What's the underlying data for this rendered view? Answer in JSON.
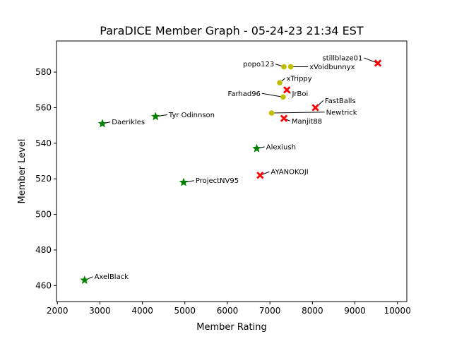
{
  "chart_data": {
    "type": "scatter",
    "title": "ParaDICE Member Graph - 05-24-23 21:34 EST",
    "xlabel": "Member Rating",
    "ylabel": "Member Level",
    "xlim": [
      1980,
      10220
    ],
    "ylim": [
      451,
      597.5
    ],
    "xticks": [
      2000,
      3000,
      4000,
      5000,
      6000,
      7000,
      8000,
      9000,
      10000
    ],
    "yticks": [
      460,
      480,
      500,
      520,
      540,
      560,
      580
    ],
    "grid": false,
    "legend": "none",
    "colors": {
      "star": "#008000",
      "cross": "#ff0000",
      "circle": "#bfbf00",
      "annotation": "#000000"
    },
    "series": [
      {
        "name": "star",
        "marker": "star",
        "points": [
          {
            "label": "Daerikles",
            "x": 3060,
            "y": 551
          },
          {
            "label": "Tyr Odinnson",
            "x": 4310,
            "y": 555
          },
          {
            "label": "ProjectNV95",
            "x": 4970,
            "y": 518
          },
          {
            "label": "Alexiush",
            "x": 6690,
            "y": 537
          },
          {
            "label": "AxelBlack",
            "x": 2640,
            "y": 463
          }
        ]
      },
      {
        "name": "cross",
        "marker": "x",
        "points": [
          {
            "label": "stillblaze01",
            "x": 9540,
            "y": 585
          },
          {
            "label": "JrBoi",
            "x": 7400,
            "y": 570
          },
          {
            "label": "FastBalls",
            "x": 8070,
            "y": 560
          },
          {
            "label": "Manjit88",
            "x": 7330,
            "y": 554
          },
          {
            "label": "AYANOKOJI",
            "x": 6770,
            "y": 522
          }
        ]
      },
      {
        "name": "circle",
        "marker": "circle",
        "points": [
          {
            "label": "popo123",
            "x": 7330,
            "y": 583
          },
          {
            "label": "xVoidbunnyx",
            "x": 7490,
            "y": 583
          },
          {
            "label": "xTrippy",
            "x": 7230,
            "y": 574
          },
          {
            "label": "Farhad96",
            "x": 7310,
            "y": 566
          },
          {
            "label": "Newtrick",
            "x": 7040,
            "y": 557
          }
        ]
      }
    ],
    "annotation_offsets": [
      {
        "label": "Daerikles",
        "dx": 220,
        "dy": 1
      },
      {
        "label": "Tyr Odinnson",
        "dx": 310,
        "dy": 1
      },
      {
        "label": "ProjectNV95",
        "dx": 280,
        "dy": 1
      },
      {
        "label": "Alexiush",
        "dx": 220,
        "dy": 1
      },
      {
        "label": "AxelBlack",
        "dx": 230,
        "dy": 2
      },
      {
        "label": "stillblaze01",
        "dx": -360,
        "dy": 3
      },
      {
        "label": "JrBoi",
        "dx": 120,
        "dy": -2
      },
      {
        "label": "FastBalls",
        "dx": 220,
        "dy": 4
      },
      {
        "label": "Manjit88",
        "dx": 180,
        "dy": -1.5
      },
      {
        "label": "AYANOKOJI",
        "dx": 250,
        "dy": 2
      },
      {
        "label": "popo123",
        "dx": -230,
        "dy": 1.5
      },
      {
        "label": "xVoidbunnyx",
        "dx": 440,
        "dy": 0
      },
      {
        "label": "xTrippy",
        "dx": 160,
        "dy": 2.5
      },
      {
        "label": "Farhad96",
        "dx": -530,
        "dy": 2
      },
      {
        "label": "Newtrick",
        "dx": 1280,
        "dy": 0.5
      }
    ]
  }
}
